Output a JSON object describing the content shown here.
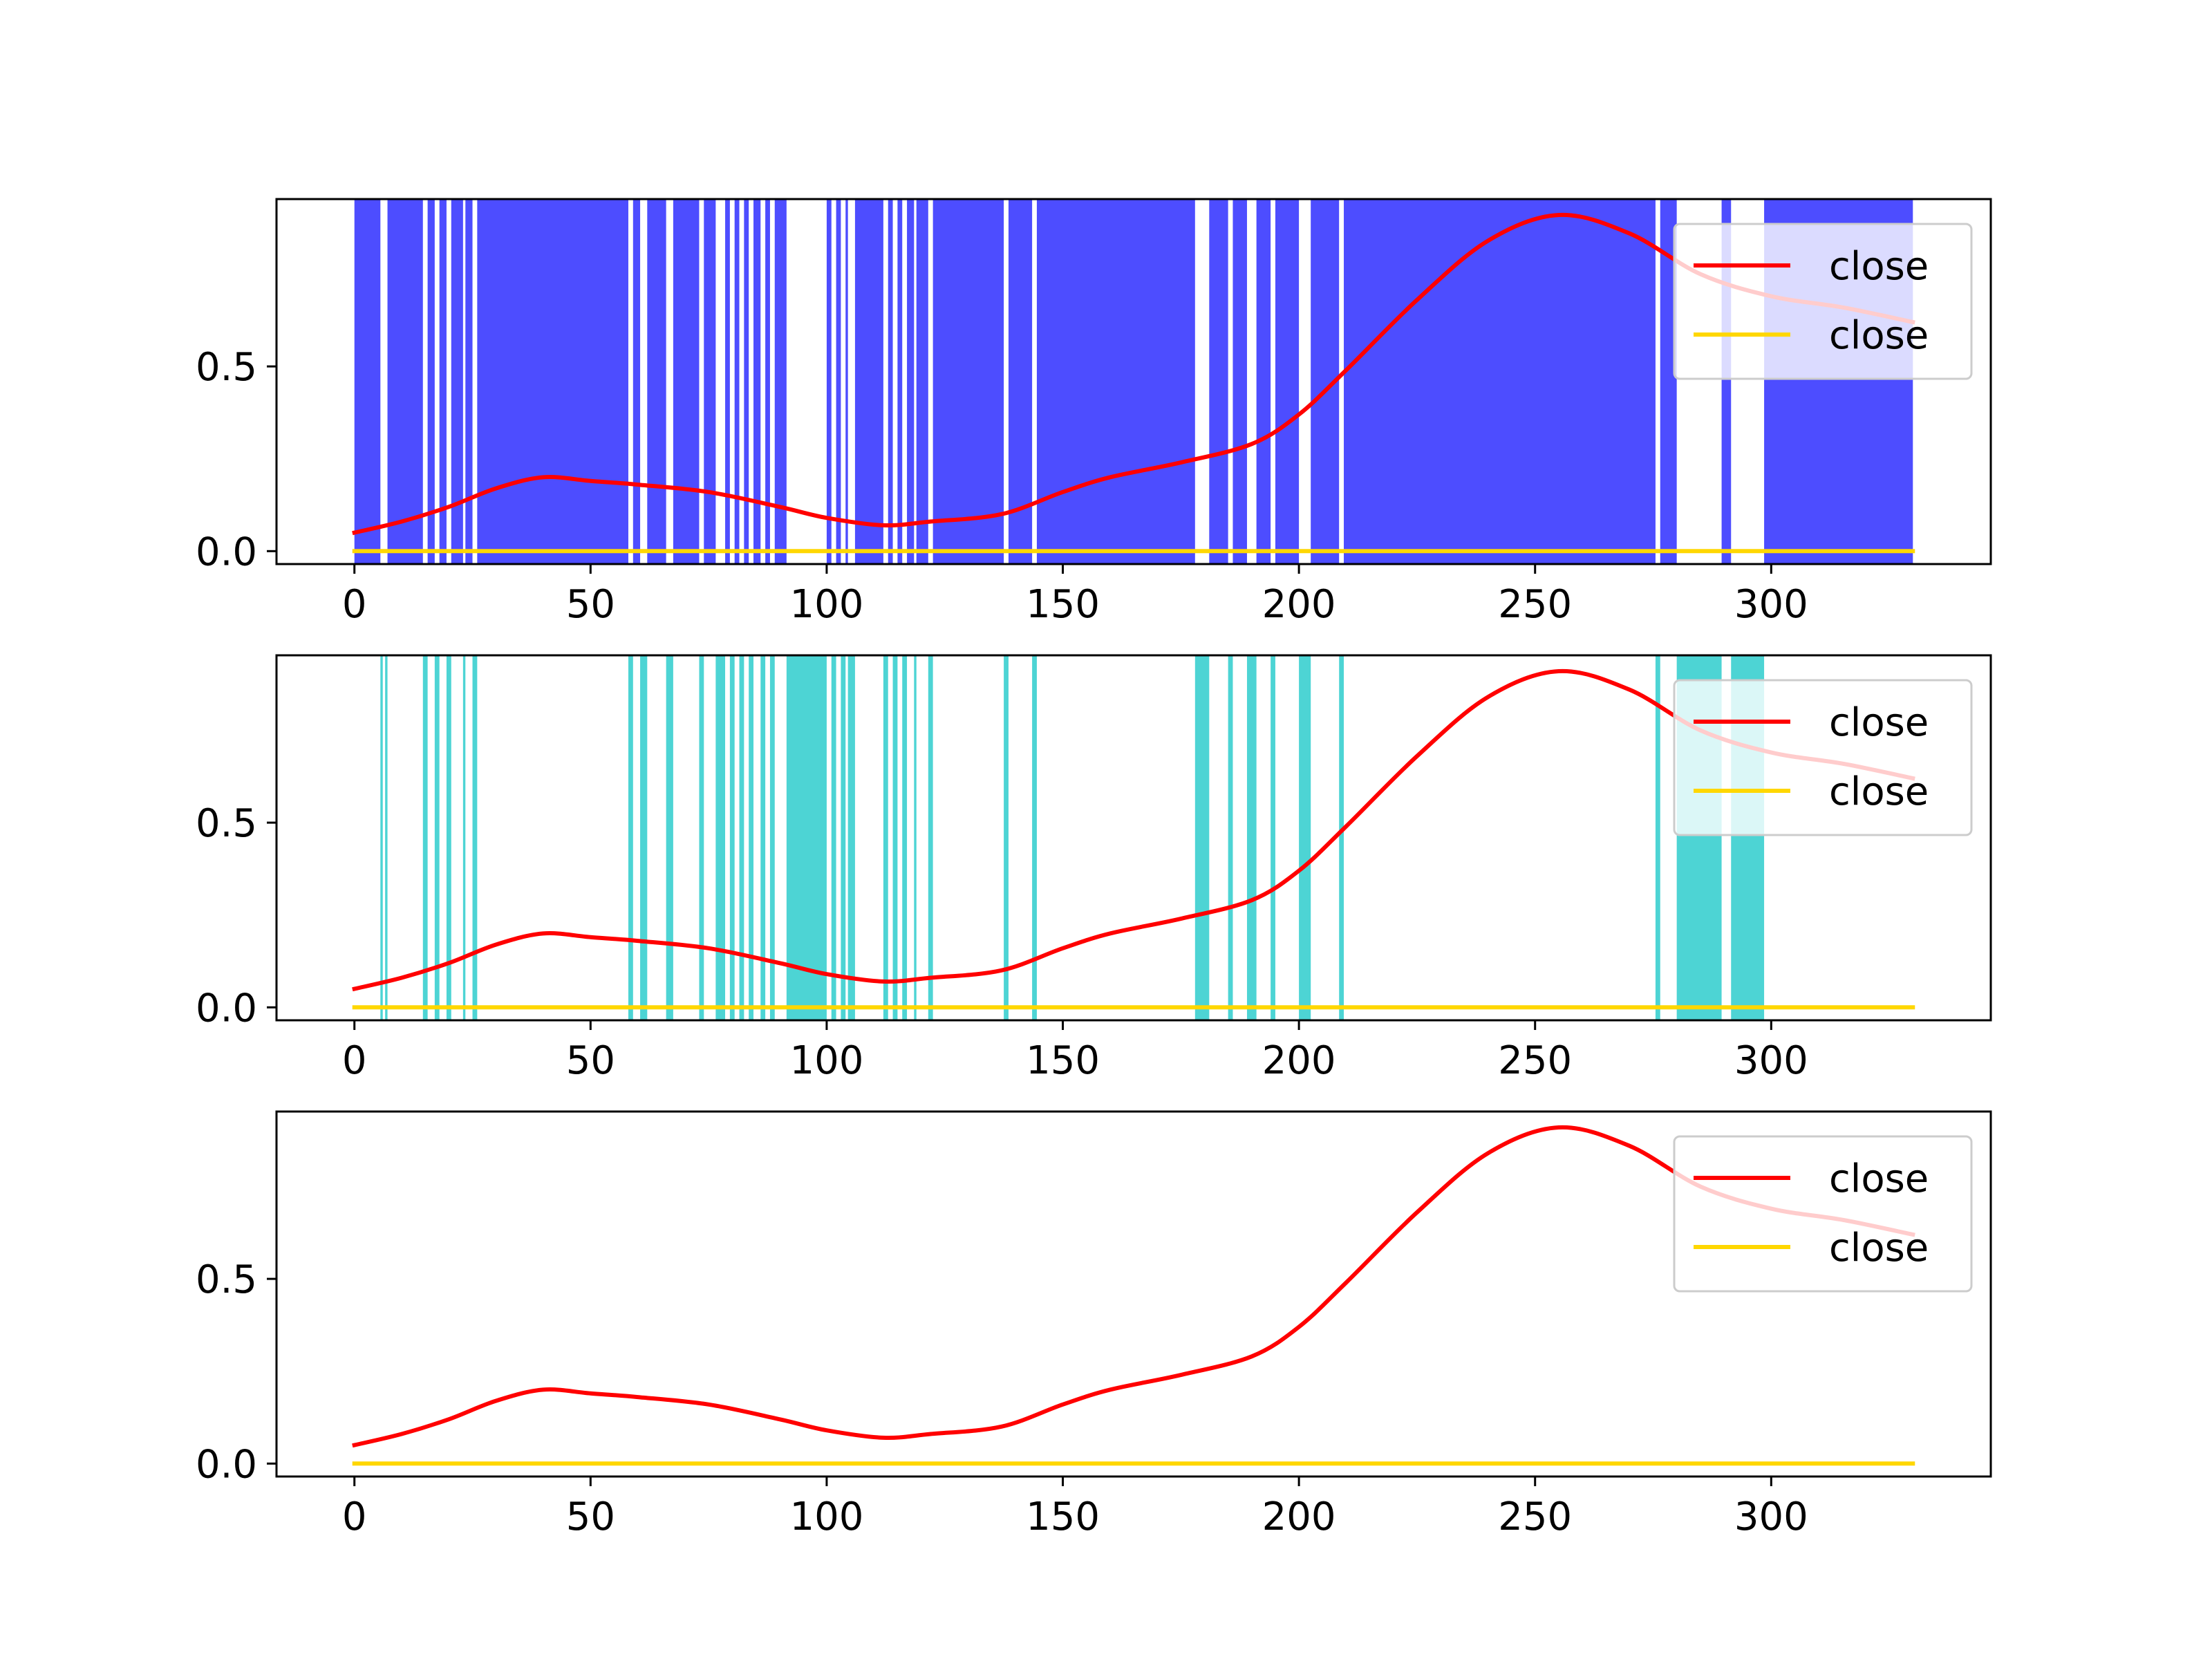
{
  "chart_data": [
    {
      "type": "line",
      "xlim": [
        -16.5,
        346.5
      ],
      "ylim": [
        -0.035,
        0.953
      ],
      "xticks": [
        "0",
        "50",
        "100",
        "150",
        "200",
        "250",
        "300"
      ],
      "xtick_values": [
        0,
        50,
        100,
        150,
        200,
        250,
        300
      ],
      "yticks": [
        "0.0",
        "0.5"
      ],
      "ytick_values": [
        0,
        0.5
      ],
      "grid": false,
      "legend": {
        "placement": "upper-right",
        "entries": [
          "close",
          "close"
        ]
      },
      "series": [
        {
          "name": "close",
          "color": "#ff0000",
          "x": [
            0,
            10,
            20,
            30,
            40,
            50,
            60,
            75,
            90,
            100,
            112,
            122,
            137,
            150,
            160,
            175,
            190,
            200,
            210,
            225,
            240,
            255,
            270,
            285,
            300,
            315,
            330
          ],
          "y": [
            0.05,
            0.08,
            0.12,
            0.17,
            0.2,
            0.19,
            0.18,
            0.16,
            0.12,
            0.09,
            0.07,
            0.08,
            0.1,
            0.16,
            0.2,
            0.24,
            0.29,
            0.37,
            0.49,
            0.68,
            0.84,
            0.91,
            0.86,
            0.75,
            0.69,
            0.66,
            0.62
          ]
        },
        {
          "name": "close",
          "color": "#ffd700",
          "x": [
            0,
            330
          ],
          "y": [
            0.0,
            0.0
          ]
        }
      ],
      "bands": {
        "color": "#4d4dff",
        "ranges": [
          [
            0,
            5.5
          ],
          [
            7,
            14.5
          ],
          [
            15.5,
            17
          ],
          [
            18,
            19.5
          ],
          [
            20.5,
            23
          ],
          [
            23.5,
            25
          ],
          [
            26,
            58
          ],
          [
            59,
            60.5
          ],
          [
            62,
            66
          ],
          [
            67.5,
            73
          ],
          [
            74,
            76.5
          ],
          [
            78.5,
            79.5
          ],
          [
            80.5,
            81.5
          ],
          [
            82.5,
            83.5
          ],
          [
            84.5,
            86
          ],
          [
            87,
            88
          ],
          [
            89,
            91.5
          ],
          [
            100,
            101
          ],
          [
            102,
            103
          ],
          [
            104,
            104.5
          ],
          [
            106,
            112
          ],
          [
            113,
            114
          ],
          [
            115,
            116
          ],
          [
            117,
            118.5
          ],
          [
            119,
            121.5
          ],
          [
            122.5,
            137.5
          ],
          [
            138.5,
            143.5
          ],
          [
            144.5,
            178
          ],
          [
            181,
            185
          ],
          [
            186,
            189
          ],
          [
            191,
            194
          ],
          [
            195,
            200
          ],
          [
            202.5,
            208.5
          ],
          [
            209.5,
            275.5
          ],
          [
            276.5,
            280
          ],
          [
            289.5,
            291.5
          ],
          [
            298.5,
            330
          ]
        ]
      }
    },
    {
      "type": "line",
      "xlim": [
        -16.5,
        346.5
      ],
      "ylim": [
        -0.035,
        0.953
      ],
      "xticks": [
        "0",
        "50",
        "100",
        "150",
        "200",
        "250",
        "300"
      ],
      "xtick_values": [
        0,
        50,
        100,
        150,
        200,
        250,
        300
      ],
      "yticks": [
        "0.0",
        "0.5"
      ],
      "ytick_values": [
        0,
        0.5
      ],
      "grid": false,
      "legend": {
        "placement": "upper-right",
        "entries": [
          "close",
          "close"
        ]
      },
      "series": [
        {
          "name": "close",
          "color": "#ff0000",
          "x": [
            0,
            10,
            20,
            30,
            40,
            50,
            60,
            75,
            90,
            100,
            112,
            122,
            137,
            150,
            160,
            175,
            190,
            200,
            210,
            225,
            240,
            255,
            270,
            285,
            300,
            315,
            330
          ],
          "y": [
            0.05,
            0.08,
            0.12,
            0.17,
            0.2,
            0.19,
            0.18,
            0.16,
            0.12,
            0.09,
            0.07,
            0.08,
            0.1,
            0.16,
            0.2,
            0.24,
            0.29,
            0.37,
            0.49,
            0.68,
            0.84,
            0.91,
            0.86,
            0.75,
            0.69,
            0.66,
            0.62
          ]
        },
        {
          "name": "close",
          "color": "#ffd700",
          "x": [
            0,
            330
          ],
          "y": [
            0.0,
            0.0
          ]
        }
      ],
      "bands": {
        "color": "#4dd4d4",
        "ranges": [
          [
            5.5,
            6
          ],
          [
            6.5,
            7
          ],
          [
            14.5,
            15.5
          ],
          [
            17,
            18
          ],
          [
            19.5,
            20.5
          ],
          [
            23,
            23.5
          ],
          [
            25,
            26
          ],
          [
            58,
            59
          ],
          [
            60.5,
            62
          ],
          [
            66,
            67.5
          ],
          [
            73,
            74
          ],
          [
            76.5,
            78.5
          ],
          [
            79.5,
            80.5
          ],
          [
            81.5,
            82.5
          ],
          [
            83.5,
            84.5
          ],
          [
            86,
            87
          ],
          [
            88,
            89
          ],
          [
            91.5,
            100
          ],
          [
            101,
            102
          ],
          [
            103,
            104
          ],
          [
            104.5,
            106
          ],
          [
            112,
            113
          ],
          [
            114,
            115
          ],
          [
            116,
            117
          ],
          [
            118.5,
            119
          ],
          [
            121.5,
            122.5
          ],
          [
            137.5,
            138.5
          ],
          [
            143.5,
            144.5
          ],
          [
            178,
            181
          ],
          [
            185,
            186
          ],
          [
            189,
            191
          ],
          [
            194,
            195
          ],
          [
            200,
            202.5
          ],
          [
            208.5,
            209.5
          ],
          [
            275.5,
            276.5
          ],
          [
            280,
            289.5
          ],
          [
            291.5,
            298.5
          ]
        ]
      }
    },
    {
      "type": "line",
      "xlim": [
        -16.5,
        346.5
      ],
      "ylim": [
        -0.035,
        0.953
      ],
      "xticks": [
        "0",
        "50",
        "100",
        "150",
        "200",
        "250",
        "300"
      ],
      "xtick_values": [
        0,
        50,
        100,
        150,
        200,
        250,
        300
      ],
      "yticks": [
        "0.0",
        "0.5"
      ],
      "ytick_values": [
        0,
        0.5
      ],
      "grid": false,
      "legend": {
        "placement": "upper-right",
        "entries": [
          "close",
          "close"
        ]
      },
      "series": [
        {
          "name": "close",
          "color": "#ff0000",
          "x": [
            0,
            10,
            20,
            30,
            40,
            50,
            60,
            75,
            90,
            100,
            112,
            122,
            137,
            150,
            160,
            175,
            190,
            200,
            210,
            225,
            240,
            255,
            270,
            285,
            300,
            315,
            330
          ],
          "y": [
            0.05,
            0.08,
            0.12,
            0.17,
            0.2,
            0.19,
            0.18,
            0.16,
            0.12,
            0.09,
            0.07,
            0.08,
            0.1,
            0.16,
            0.2,
            0.24,
            0.29,
            0.37,
            0.49,
            0.68,
            0.84,
            0.91,
            0.86,
            0.75,
            0.69,
            0.66,
            0.62
          ]
        },
        {
          "name": "close",
          "color": "#ffd700",
          "x": [
            0,
            330
          ],
          "y": [
            0.0,
            0.0
          ]
        }
      ],
      "bands": null
    }
  ]
}
